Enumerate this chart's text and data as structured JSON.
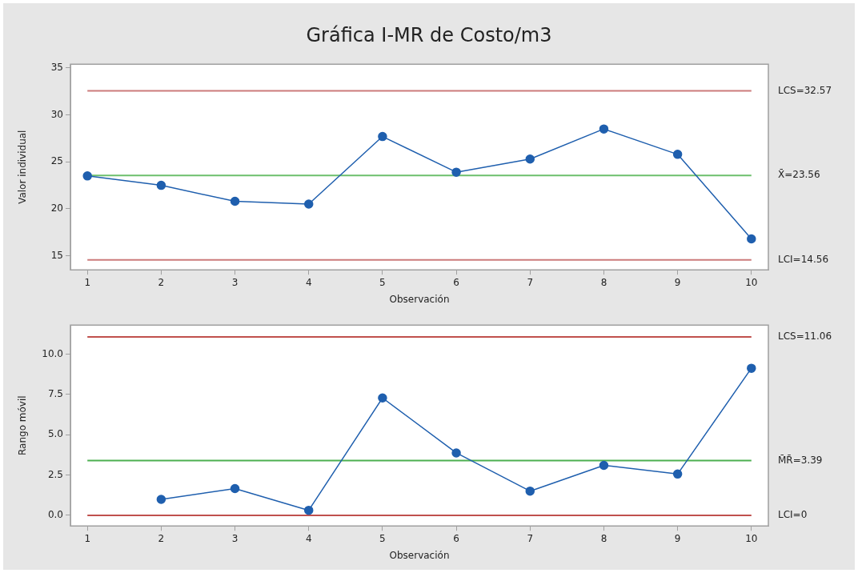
{
  "chart_data": [
    {
      "type": "line",
      "title": "Gráfica I-MR de Costo/m3",
      "xlabel": "Observación",
      "ylabel": "Valor individual",
      "x": [
        1,
        2,
        3,
        4,
        5,
        6,
        7,
        8,
        9,
        10
      ],
      "series": [
        {
          "color": "#1f5fae",
          "values": [
            23.5,
            22.5,
            20.8,
            20.5,
            27.7,
            23.9,
            25.3,
            28.5,
            25.8,
            16.8
          ]
        }
      ],
      "xlim": [
        0.77,
        10.23
      ],
      "xticks": [
        1,
        2,
        3,
        4,
        5,
        6,
        7,
        8,
        9,
        10
      ],
      "ylim": [
        13.5,
        35.4
      ],
      "yticks": [
        15,
        20,
        25,
        30,
        35
      ],
      "ref_lines": [
        {
          "axis": "y",
          "value": 32.57,
          "label": "LCS=32.57",
          "color": "#cc7b7b"
        },
        {
          "axis": "y",
          "value": 23.56,
          "label": "X̄=23.56",
          "color": "#6cbf6c"
        },
        {
          "axis": "y",
          "value": 14.56,
          "label": "LCI=14.56",
          "color": "#cc7b7b"
        }
      ],
      "grid": false,
      "legend": false,
      "marker": "circle",
      "line_style": "solid"
    },
    {
      "type": "line",
      "xlabel": "Observación",
      "ylabel": "Rango móvil",
      "series": [
        {
          "color": "#1f5fae",
          "x": [
            2,
            3,
            4,
            5,
            6,
            7,
            8,
            9,
            10
          ],
          "values": [
            0.99,
            1.66,
            0.31,
            7.28,
            3.87,
            1.5,
            3.1,
            2.56,
            9.12
          ]
        }
      ],
      "xlim": [
        0.77,
        10.23
      ],
      "xticks": [
        1,
        2,
        3,
        4,
        5,
        6,
        7,
        8,
        9,
        10
      ],
      "ylim": [
        -0.66,
        11.8
      ],
      "yticks": [
        {
          "value": 0,
          "label": "0.0"
        },
        {
          "value": 2.5,
          "label": "2.5"
        },
        {
          "value": 5,
          "label": "5.0"
        },
        {
          "value": 7.5,
          "label": "7.5"
        },
        {
          "value": 10,
          "label": "10.0"
        }
      ],
      "ref_lines": [
        {
          "axis": "y",
          "value": 11.06,
          "label": "LCS=11.06",
          "color": "#c0504d"
        },
        {
          "axis": "y",
          "value": 3.39,
          "label": "M̄R̄=3.39",
          "color": "#4caf50"
        },
        {
          "axis": "y",
          "value": 0,
          "label": "LCI=0",
          "color": "#c0504d"
        }
      ],
      "grid": false,
      "legend": false,
      "marker": "circle",
      "line_style": "solid"
    }
  ]
}
